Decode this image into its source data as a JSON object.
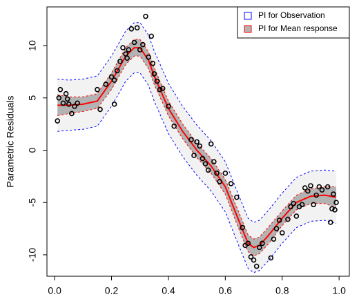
{
  "chart_data": {
    "type": "regression-bands",
    "y_label": "Parametric Residuals",
    "xlim": [
      -0.027,
      1.036
    ],
    "ylim": [
      -12.05,
      13.7
    ],
    "xticks": [
      {
        "value": 0,
        "label": "0.0"
      },
      {
        "value": 0.2,
        "label": "0.2"
      },
      {
        "value": 0.4,
        "label": "0.4"
      },
      {
        "value": 0.6,
        "label": "0.6"
      },
      {
        "value": 0.8,
        "label": "0.8"
      },
      {
        "value": 1,
        "label": "1.0"
      }
    ],
    "yticks": [
      -10,
      -5,
      0,
      5,
      10
    ],
    "legend_position": "top-right",
    "x": [
      0.01,
      0.05,
      0.1,
      0.15,
      0.2,
      0.25,
      0.28,
      0.3,
      0.33,
      0.35,
      0.4,
      0.45,
      0.5,
      0.55,
      0.6,
      0.65,
      0.68,
      0.7,
      0.72,
      0.75,
      0.8,
      0.85,
      0.9,
      0.95,
      0.99
    ],
    "bands": [
      {
        "name": "PI for Observation",
        "fill": "#f2f2f2",
        "color": "#0000ff",
        "upper": [
          6.8,
          6.7,
          6.8,
          7.1,
          9.0,
          11.4,
          12.2,
          12.2,
          11.0,
          9.5,
          6.4,
          4.2,
          2.4,
          0.9,
          -1.1,
          -4.5,
          -6.5,
          -6.9,
          -6.7,
          -5.8,
          -4.1,
          -2.6,
          -2.0,
          -1.9,
          -2.0
        ],
        "lower": [
          1.8,
          1.9,
          2.0,
          2.3,
          4.2,
          6.6,
          7.4,
          7.4,
          6.2,
          4.7,
          1.6,
          -0.6,
          -2.4,
          -3.9,
          -5.9,
          -9.3,
          -11.3,
          -11.7,
          -11.5,
          -10.6,
          -8.9,
          -7.4,
          -6.8,
          -6.7,
          -7.0
        ]
      },
      {
        "name": "PI for Mean response",
        "fill": "#b3b3b3",
        "color": "#ff0000",
        "upper": [
          5.3,
          5.1,
          5.1,
          5.4,
          7.4,
          9.8,
          10.6,
          10.6,
          9.4,
          7.9,
          4.7,
          2.5,
          0.7,
          -0.8,
          -2.8,
          -6.1,
          -8.1,
          -8.5,
          -8.3,
          -7.4,
          -5.8,
          -4.3,
          -3.7,
          -3.5,
          -3.5
        ],
        "lower": [
          3.3,
          3.5,
          3.7,
          4.0,
          5.8,
          8.2,
          9.0,
          9.0,
          7.8,
          6.3,
          3.3,
          1.1,
          -0.7,
          -2.2,
          -4.2,
          -7.7,
          -9.7,
          -10.1,
          -9.9,
          -9.0,
          -7.2,
          -5.7,
          -5.1,
          -5.1,
          -5.5
        ]
      }
    ],
    "fit": {
      "color": "#ff0000",
      "values": [
        4.3,
        4.3,
        4.4,
        4.7,
        6.6,
        9.0,
        9.8,
        9.8,
        8.6,
        7.1,
        4.0,
        1.8,
        0.0,
        -1.5,
        -3.5,
        -6.9,
        -8.9,
        -9.3,
        -9.1,
        -8.2,
        -6.5,
        -5.0,
        -4.4,
        -4.3,
        -4.5
      ]
    },
    "points": {
      "color": "#000000",
      "x": [
        0.01,
        0.015,
        0.02,
        0.03,
        0.04,
        0.045,
        0.05,
        0.06,
        0.07,
        0.08,
        0.15,
        0.16,
        0.18,
        0.2,
        0.21,
        0.21,
        0.22,
        0.23,
        0.24,
        0.25,
        0.255,
        0.26,
        0.27,
        0.28,
        0.29,
        0.3,
        0.31,
        0.32,
        0.33,
        0.34,
        0.345,
        0.35,
        0.36,
        0.37,
        0.38,
        0.4,
        0.42,
        0.48,
        0.49,
        0.5,
        0.51,
        0.52,
        0.53,
        0.54,
        0.55,
        0.56,
        0.57,
        0.58,
        0.6,
        0.62,
        0.64,
        0.66,
        0.67,
        0.68,
        0.69,
        0.7,
        0.71,
        0.72,
        0.73,
        0.76,
        0.77,
        0.78,
        0.79,
        0.8,
        0.82,
        0.83,
        0.84,
        0.85,
        0.86,
        0.87,
        0.88,
        0.89,
        0.9,
        0.91,
        0.92,
        0.93,
        0.94,
        0.96,
        0.97,
        0.975,
        0.98,
        0.985,
        0.99
      ],
      "y": [
        2.8,
        5.0,
        5.8,
        4.5,
        5.4,
        4.9,
        4.4,
        3.5,
        4.2,
        4.5,
        5.8,
        3.9,
        6.3,
        7.0,
        4.4,
        6.7,
        7.6,
        8.5,
        9.8,
        9.2,
        8.8,
        9.6,
        11.6,
        10.3,
        11.7,
        9.6,
        10.1,
        12.8,
        8.9,
        10.9,
        8.3,
        7.3,
        6.6,
        5.8,
        5.9,
        4.2,
        2.3,
        1.0,
        -0.5,
        0.8,
        0.4,
        -0.8,
        -1.3,
        -1.9,
        0.6,
        -1.1,
        -2.2,
        -3.0,
        -2.2,
        -3.2,
        -4.5,
        -7.4,
        -9.1,
        -8.9,
        -10.2,
        -10.5,
        -11.1,
        -9.3,
        -8.9,
        -10.3,
        -8.5,
        -7.5,
        -6.7,
        -7.9,
        -6.6,
        -5.4,
        -5.1,
        -6.3,
        -5.4,
        -5.2,
        -3.6,
        -3.9,
        -3.4,
        -5.2,
        -4.3,
        -3.5,
        -3.8,
        -3.5,
        -6.9,
        -5.6,
        -4.2,
        -5.7,
        -5.0
      ]
    }
  }
}
